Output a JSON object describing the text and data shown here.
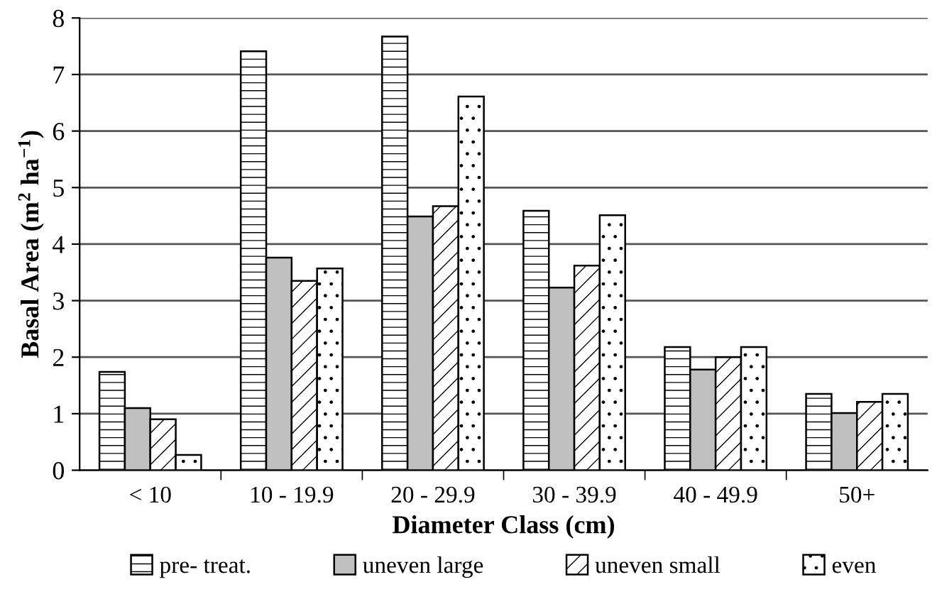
{
  "chart_data": {
    "type": "bar",
    "xlabel": "Diameter Class (cm)",
    "ylabel": "Basal Area (m$^{2}$ ha$^{−1}$)",
    "categories": [
      "< 10",
      "10 - 19.9",
      "20 - 29.9",
      "30 - 39.9",
      "40 - 49.9",
      "50+"
    ],
    "series": [
      {
        "name": "pre- treat.",
        "color": "#000000",
        "values": [
          1.74,
          7.41,
          7.67,
          4.59,
          2.18,
          1.35
        ]
      },
      {
        "name": "uneven large",
        "color": "#c0c0c0",
        "values": [
          1.1,
          3.76,
          4.49,
          3.23,
          1.78,
          1.01
        ]
      },
      {
        "name": "uneven small",
        "color": "#000000",
        "values": [
          0.9,
          3.35,
          4.67,
          3.62,
          2.0,
          1.21
        ]
      },
      {
        "name": "even",
        "color": "#000000",
        "values": [
          0.27,
          3.57,
          6.61,
          4.51,
          2.18,
          1.35
        ]
      }
    ],
    "ylim": [
      0,
      8
    ],
    "yticks": [
      0,
      1,
      2,
      3,
      4,
      5,
      6,
      7,
      8
    ],
    "grid": "y",
    "legend": "bottom"
  }
}
